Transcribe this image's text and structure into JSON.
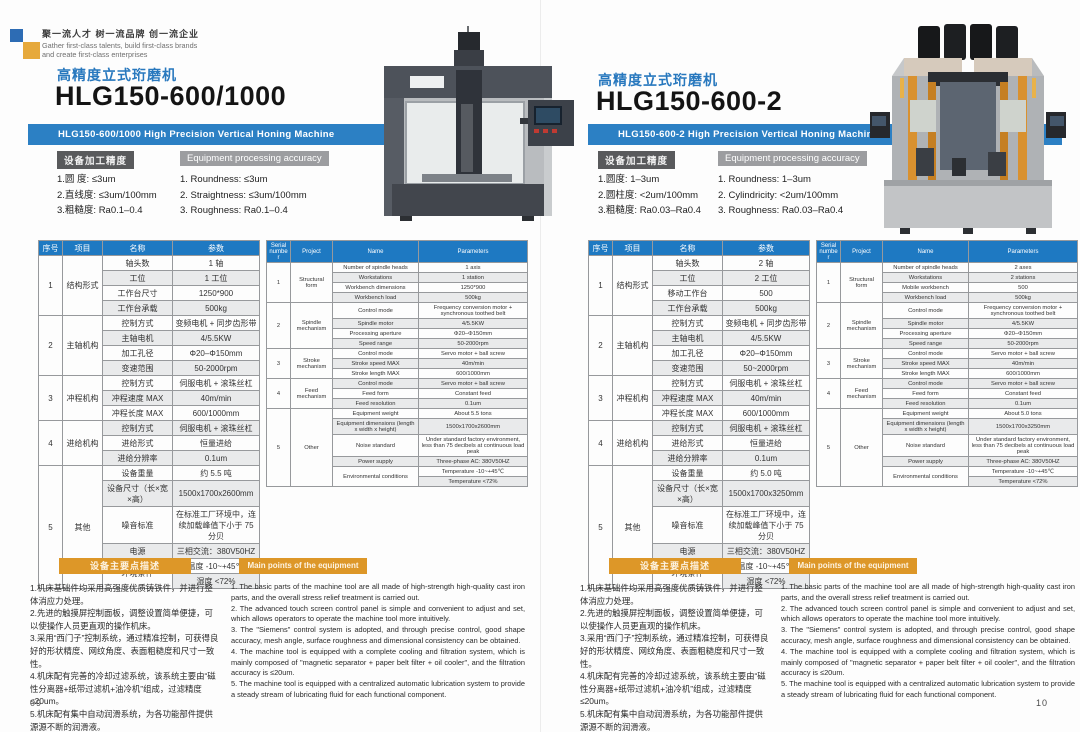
{
  "brand": {
    "slogan_cn": "聚一流人才 树一流品牌 创一流企业",
    "slogan_en_1": "Gather first-class talents, build first-class brands",
    "slogan_en_2": "and create first-class enterprises"
  },
  "pages": [
    {
      "category_cn": "高精度立式珩磨机",
      "model": "HLG150-600/1000",
      "banner": "HLG150-600/1000 High Precision Vertical Honing Machine",
      "accuracy_badge_cn": "设备加工精度",
      "accuracy_badge_en": "Equipment processing accuracy",
      "accuracy_cn": [
        "1.圆 度: ≤3um",
        "2.直线度: ≤3um/100mm",
        "3.粗糙度: Ra0.1–0.4"
      ],
      "accuracy_en": [
        "1. Roundness: ≤3um",
        "2. Straightness: ≤3um/100mm",
        "3. Roughness: Ra0.1–0.4"
      ],
      "table_cn": {
        "headers": [
          "序号",
          "项目",
          "名称",
          "参数"
        ],
        "groups": [
          {
            "no": "1",
            "project": "结构形式",
            "rows": [
              {
                "name": "轴头数",
                "params": [
                  "1 轴"
                ]
              },
              {
                "name": "工位",
                "params": [
                  "1 工位"
                ]
              },
              {
                "name": "工作台尺寸",
                "params": [
                  "1250*900"
                ]
              },
              {
                "name": "工作台承载",
                "params": [
                  "500kg"
                ]
              }
            ]
          },
          {
            "no": "2",
            "project": "主轴机构",
            "rows": [
              {
                "name": "控制方式",
                "params": [
                  "变频电机 + 同步齿形带"
                ]
              },
              {
                "name": "主轴电机",
                "params": [
                  "4/5.5KW"
                ]
              },
              {
                "name": "加工孔径",
                "params": [
                  "Φ20–Φ150mm"
                ]
              },
              {
                "name": "变速范围",
                "params": [
                  "50-2000rpm"
                ]
              }
            ]
          },
          {
            "no": "3",
            "project": "冲程机构",
            "rows": [
              {
                "name": "控制方式",
                "params": [
                  "伺服电机 + 滚珠丝杠"
                ]
              },
              {
                "name": "冲程速度 MAX",
                "params": [
                  "40m/min"
                ]
              },
              {
                "name": "冲程长度 MAX",
                "params": [
                  "600/1000mm"
                ]
              }
            ]
          },
          {
            "no": "4",
            "project": "进给机构",
            "rows": [
              {
                "name": "控制方式",
                "params": [
                  "伺服电机 + 滚珠丝杠"
                ]
              },
              {
                "name": "进给形式",
                "params": [
                  "恒量进给"
                ]
              },
              {
                "name": "进给分辨率",
                "params": [
                  "0.1um"
                ]
              }
            ]
          },
          {
            "no": "5",
            "project": "其他",
            "rows": [
              {
                "name": "设备重量",
                "params": [
                  "约 5.5 吨"
                ]
              },
              {
                "name": "设备尺寸（长×宽×高）",
                "params": [
                  "1500x1700x2600mm"
                ]
              },
              {
                "name": "噪音标准",
                "params": [
                  "在标准工厂环境中，连续加载峰值下小于 75 分贝"
                ]
              },
              {
                "name": "电源",
                "params": [
                  "三相交流：380V50HZ"
                ]
              },
              {
                "name": "环境条件",
                "params": [
                  "温度 -10~+45℃",
                  "湿度 <72%"
                ]
              }
            ]
          }
        ]
      },
      "table_en": {
        "headers": [
          "Serial number",
          "Project",
          "Name",
          "Parameters"
        ],
        "groups": [
          {
            "no": "1",
            "project": "Structural form",
            "rows": [
              {
                "name": "Number of spindle heads",
                "params": [
                  "1 axis"
                ]
              },
              {
                "name": "Workstations",
                "params": [
                  "1 station"
                ]
              },
              {
                "name": "Workbench dimensions",
                "params": [
                  "1250*900"
                ]
              },
              {
                "name": "Workbench load",
                "params": [
                  "500kg"
                ]
              }
            ]
          },
          {
            "no": "2",
            "project": "Spindle mechanism",
            "rows": [
              {
                "name": "Control mode",
                "params": [
                  "Frequency conversion motor + synchronous toothed belt"
                ]
              },
              {
                "name": "Spindle motor",
                "params": [
                  "4/5.5KW"
                ]
              },
              {
                "name": "Processing aperture",
                "params": [
                  "Φ20–Φ150mm"
                ]
              },
              {
                "name": "Speed range",
                "params": [
                  "50-2000rpm"
                ]
              }
            ]
          },
          {
            "no": "3",
            "project": "Stroke mechanism",
            "rows": [
              {
                "name": "Control mode",
                "params": [
                  "Servo motor + ball screw"
                ]
              },
              {
                "name": "Stroke speed MAX",
                "params": [
                  "40m/min"
                ]
              },
              {
                "name": "Stroke length MAX",
                "params": [
                  "600/1000mm"
                ]
              }
            ]
          },
          {
            "no": "4",
            "project": "Feed mechanism",
            "rows": [
              {
                "name": "Control mode",
                "params": [
                  "Servo motor + ball screw"
                ]
              },
              {
                "name": "Feed form",
                "params": [
                  "Constant feed"
                ]
              },
              {
                "name": "Feed resolution",
                "params": [
                  "0.1um"
                ]
              }
            ]
          },
          {
            "no": "5",
            "project": "Other",
            "rows": [
              {
                "name": "Equipment weight",
                "params": [
                  "About 5.5 tons"
                ]
              },
              {
                "name": "Equipment dimensions (length x width x height)",
                "params": [
                  "1500x1700x2600mm"
                ]
              },
              {
                "name": "Noise standard",
                "params": [
                  "Under standard factory environment, less than 75 decibels at continuous load peak"
                ]
              },
              {
                "name": "Power supply",
                "params": [
                  "Three-phase AC: 380V50HZ"
                ]
              },
              {
                "name": "Environmental conditions",
                "params": [
                  "Temperature -10~+45℃",
                  "Temperature <72%"
                ]
              }
            ]
          }
        ]
      },
      "points_badge_cn": "设备主要点描述",
      "points_badge_en": "Main points of the equipment",
      "points_cn": [
        "1.机床基础件均采用高强度优质铸铁件，并进行整体消应力处理。",
        "2.先进的触摸屏控制面板，调整设置简单便捷，可以使操作人员更直观的操作机床。",
        "3.采用“西门子”控制系统，通过精准控制，可获得良好的形状精度、网纹角度、表面粗糙度和尺寸一致性。",
        "4.机床配有完善的冷却过滤系统，该系统主要由“磁性分离器+纸带过滤机+油冷机”组成，过滤精度≤20um。",
        "5.机床配有集中自动润滑系统，为各功能部件提供源源不断的润滑液。"
      ],
      "points_en": [
        "1. The basic parts of the machine tool are all made of high-strength high-quality cast iron parts, and the overall stress relief treatment is carried out.",
        "2. The advanced touch screen control panel is simple and convenient to adjust and set, which allows operators to operate the machine tool more intuitively.",
        "3. The \"Siemens\" control system is adopted, and through precise control, good shape accuracy, mesh angle, surface roughness and dimensional consistency can be obtained.",
        "4. The machine tool is equipped with a complete cooling and filtration system, which is mainly composed of \"magnetic separator + paper belt filter + oil cooler\", and the filtration accuracy is ≤20um.",
        "5. The machine tool is equipped with a centralized automatic lubrication system to provide a steady stream of lubricating fluid for each functional component."
      ],
      "page_number": "09"
    },
    {
      "category_cn": "高精度立式珩磨机",
      "model": "HLG150-600-2",
      "banner": "HLG150-600-2 High Precision Vertical Honing Machine",
      "accuracy_badge_cn": "设备加工精度",
      "accuracy_badge_en": "Equipment processing accuracy",
      "accuracy_cn": [
        "1.圆度: 1–3um",
        "2.圆柱度: <2um/100mm",
        "3.粗糙度: Ra0.03–Ra0.4"
      ],
      "accuracy_en": [
        "1. Roundness: 1–3um",
        "2. Cylindricity: <2um/100mm",
        "3. Roughness: Ra0.03–Ra0.4"
      ],
      "table_cn": {
        "headers": [
          "序号",
          "项目",
          "名称",
          "参数"
        ],
        "groups": [
          {
            "no": "1",
            "project": "结构形式",
            "rows": [
              {
                "name": "轴头数",
                "params": [
                  "2 轴"
                ]
              },
              {
                "name": "工位",
                "params": [
                  "2 工位"
                ]
              },
              {
                "name": "移动工作台",
                "params": [
                  "500"
                ]
              },
              {
                "name": "工作台承载",
                "params": [
                  "500kg"
                ]
              }
            ]
          },
          {
            "no": "2",
            "project": "主轴机构",
            "rows": [
              {
                "name": "控制方式",
                "params": [
                  "变频电机 + 同步齿形带"
                ]
              },
              {
                "name": "主轴电机",
                "params": [
                  "4/5.5KW"
                ]
              },
              {
                "name": "加工孔径",
                "params": [
                  "Φ20–Φ150mm"
                ]
              },
              {
                "name": "变速范围",
                "params": [
                  "50~2000rpm"
                ]
              }
            ]
          },
          {
            "no": "3",
            "project": "冲程机构",
            "rows": [
              {
                "name": "控制方式",
                "params": [
                  "伺服电机 + 滚珠丝杠"
                ]
              },
              {
                "name": "冲程速度 MAX",
                "params": [
                  "40m/min"
                ]
              },
              {
                "name": "冲程长度 MAX",
                "params": [
                  "600/1000mm"
                ]
              }
            ]
          },
          {
            "no": "4",
            "project": "进给机构",
            "rows": [
              {
                "name": "控制方式",
                "params": [
                  "伺服电机 + 滚珠丝杠"
                ]
              },
              {
                "name": "进给形式",
                "params": [
                  "恒量进给"
                ]
              },
              {
                "name": "进给分辨率",
                "params": [
                  "0.1um"
                ]
              }
            ]
          },
          {
            "no": "5",
            "project": "其他",
            "rows": [
              {
                "name": "设备重量",
                "params": [
                  "约 5.0 吨"
                ]
              },
              {
                "name": "设备尺寸（长×宽×高）",
                "params": [
                  "1500x1700x3250mm"
                ]
              },
              {
                "name": "噪音标准",
                "params": [
                  "在标准工厂环境中，连续加载峰值下小于 75 分贝"
                ]
              },
              {
                "name": "电源",
                "params": [
                  "三相交流：380V50HZ"
                ]
              },
              {
                "name": "环境条件",
                "params": [
                  "温度 -10~+45℃",
                  "湿度 <72%"
                ]
              }
            ]
          }
        ]
      },
      "table_en": {
        "headers": [
          "Serial number",
          "Project",
          "Name",
          "Parameters"
        ],
        "groups": [
          {
            "no": "1",
            "project": "Structural form",
            "rows": [
              {
                "name": "Number of spindle heads",
                "params": [
                  "2 axes"
                ]
              },
              {
                "name": "Workstations",
                "params": [
                  "2 stations"
                ]
              },
              {
                "name": "Mobile workbench",
                "params": [
                  "500"
                ]
              },
              {
                "name": "Workbench load",
                "params": [
                  "500kg"
                ]
              }
            ]
          },
          {
            "no": "2",
            "project": "Spindle mechanism",
            "rows": [
              {
                "name": "Control mode",
                "params": [
                  "Frequency conversion motor + synchronous toothed belt"
                ]
              },
              {
                "name": "Spindle motor",
                "params": [
                  "4/5.5KW"
                ]
              },
              {
                "name": "Processing aperture",
                "params": [
                  "Φ20–Φ150mm"
                ]
              },
              {
                "name": "Speed range",
                "params": [
                  "50-2000rpm"
                ]
              }
            ]
          },
          {
            "no": "3",
            "project": "Stroke mechanism",
            "rows": [
              {
                "name": "Control mode",
                "params": [
                  "Servo motor + ball screw"
                ]
              },
              {
                "name": "Stroke speed MAX",
                "params": [
                  "40m/min"
                ]
              },
              {
                "name": "Stroke length MAX",
                "params": [
                  "600/1000mm"
                ]
              }
            ]
          },
          {
            "no": "4",
            "project": "Feed mechanism",
            "rows": [
              {
                "name": "Control mode",
                "params": [
                  "Servo motor + ball screw"
                ]
              },
              {
                "name": "Feed form",
                "params": [
                  "Constant feed"
                ]
              },
              {
                "name": "Feed resolution",
                "params": [
                  "0.1um"
                ]
              }
            ]
          },
          {
            "no": "5",
            "project": "Other",
            "rows": [
              {
                "name": "Equipment weight",
                "params": [
                  "About 5.0 tons"
                ]
              },
              {
                "name": "Equipment dimensions (length x width x height)",
                "params": [
                  "1500x1700x3250mm"
                ]
              },
              {
                "name": "Noise standard",
                "params": [
                  "Under standard factory environment, less than 75 decibels at continuous load peak"
                ]
              },
              {
                "name": "Power supply",
                "params": [
                  "Three-phase AC: 380V50HZ"
                ]
              },
              {
                "name": "Environmental conditions",
                "params": [
                  "Temperature -10~+45℃",
                  "Temperature <72%"
                ]
              }
            ]
          }
        ]
      },
      "points_badge_cn": "设备主要点描述",
      "points_badge_en": "Main points of the equipment",
      "points_cn": [
        "1.机床基础件均采用高强度优质铸铁件，并进行整体消应力处理。",
        "2.先进的触摸屏控制面板，调整设置简单便捷，可以使操作人员更直观的操作机床。",
        "3.采用“西门子”控制系统，通过精准控制，可获得良好的形状精度、网纹角度、表面粗糙度和尺寸一致性。",
        "4.机床配有完善的冷却过滤系统，该系统主要由“磁性分离器+纸带过滤机+油冷机”组成，过滤精度≤20um。",
        "5.机床配有集中自动润滑系统，为各功能部件提供源源不断的润滑液。"
      ],
      "points_en": [
        "1. The basic parts of the machine tool are all made of high-strength high-quality cast iron parts, and the overall stress relief treatment is carried out.",
        "2. The advanced touch screen control panel is simple and convenient to adjust and set, which allows operators to operate the machine tool more intuitively.",
        "3. The \"Siemens\" control system is adopted, and through precise control, good shape accuracy, mesh angle, surface roughness and dimensional consistency can be obtained.",
        "4. The machine tool is equipped with a complete cooling and filtration system, which is mainly composed of \"magnetic separator + paper belt filter + oil cooler\", and the filtration accuracy is ≤20um.",
        "5. The machine tool is equipped with a centralized automatic lubrication system to provide a steady stream of lubricating fluid for each functional component."
      ],
      "page_number": "10"
    }
  ],
  "colors": {
    "banner_blue": "#2c80c4",
    "table_header_blue": "#1e79c2",
    "category_blue": "#2878be",
    "badge_dark_gray": "#595a5c",
    "badge_light_gray": "#9c9da0",
    "badge_orange": "#dd9728",
    "row_band_gray": "#e9eaeb"
  }
}
